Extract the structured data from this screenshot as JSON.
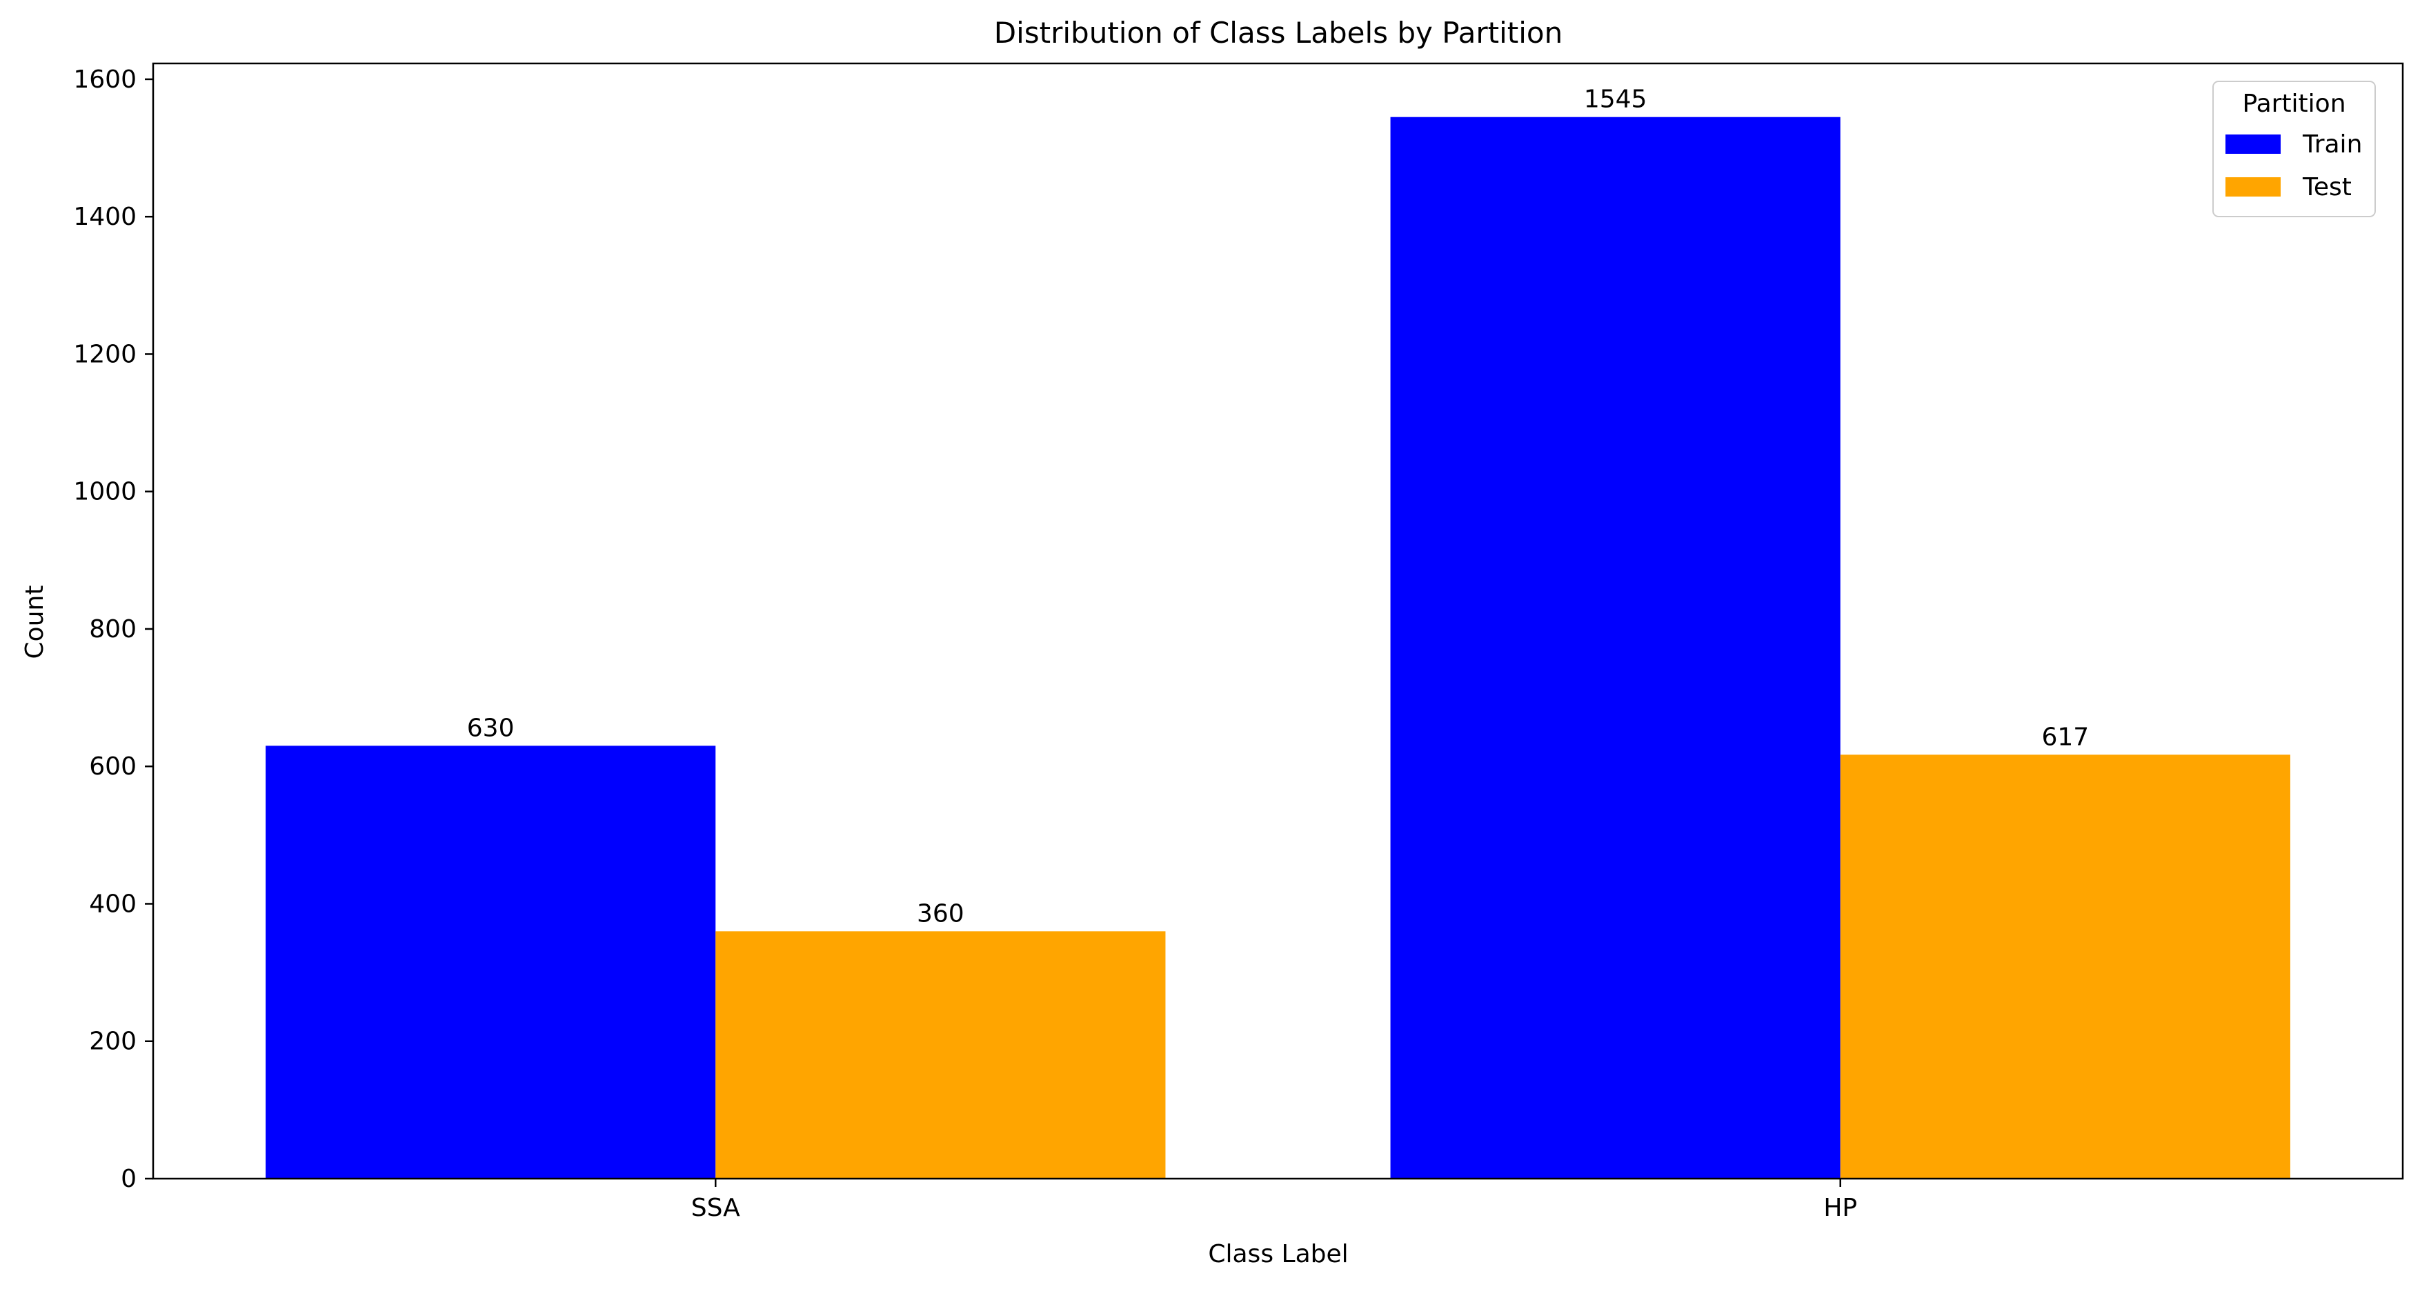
{
  "chart_data": {
    "type": "bar",
    "title": "Distribution of Class Labels by Partition",
    "xlabel": "Class Label",
    "ylabel": "Count",
    "categories": [
      "SSA",
      "HP"
    ],
    "series": [
      {
        "name": "Train",
        "color": "#0000ff",
        "values": [
          630,
          1545
        ]
      },
      {
        "name": "Test",
        "color": "#ffa500",
        "values": [
          360,
          617
        ]
      }
    ],
    "ylim": [
      0,
      1623
    ],
    "yticks": [
      0,
      200,
      400,
      600,
      800,
      1000,
      1200,
      1400,
      1600
    ],
    "data_labels": true,
    "grid": false,
    "legend": {
      "title": "Partition",
      "position": "top-right"
    }
  }
}
